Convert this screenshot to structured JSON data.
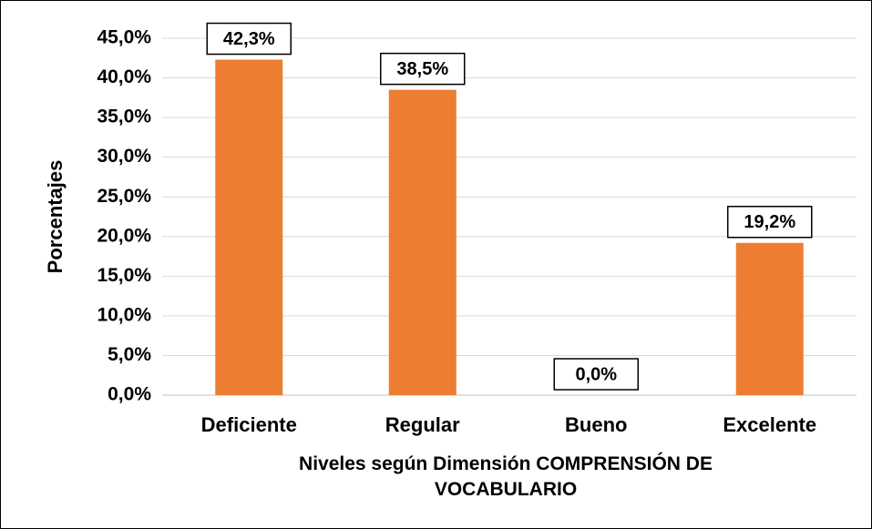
{
  "chart_data": {
    "type": "bar",
    "x_label": "Niveles según Dimensión COMPRENSIÓN DE VOCABULARIO",
    "y_label": "Porcentajes",
    "categories": [
      "Deficiente",
      "Regular",
      "Bueno",
      "Excelente"
    ],
    "values": [
      42.3,
      38.5,
      0.0,
      19.2
    ],
    "value_labels": [
      "42,3%",
      "38,5%",
      "0,0%",
      "19,2%"
    ],
    "color": "#ED7D31",
    "ylim": [
      0,
      45
    ],
    "yticks": [
      {
        "value": 0,
        "label": "0,0%"
      },
      {
        "value": 5,
        "label": "5,0%"
      },
      {
        "value": 10,
        "label": "10,0%"
      },
      {
        "value": 15,
        "label": "15,0%"
      },
      {
        "value": 20,
        "label": "20,0%"
      },
      {
        "value": 25,
        "label": "25,0%"
      },
      {
        "value": 30,
        "label": "30,0%"
      },
      {
        "value": 35,
        "label": "35,0%"
      },
      {
        "value": 40,
        "label": "40,0%"
      },
      {
        "value": 45,
        "label": "45,0%"
      }
    ],
    "grid": true
  }
}
